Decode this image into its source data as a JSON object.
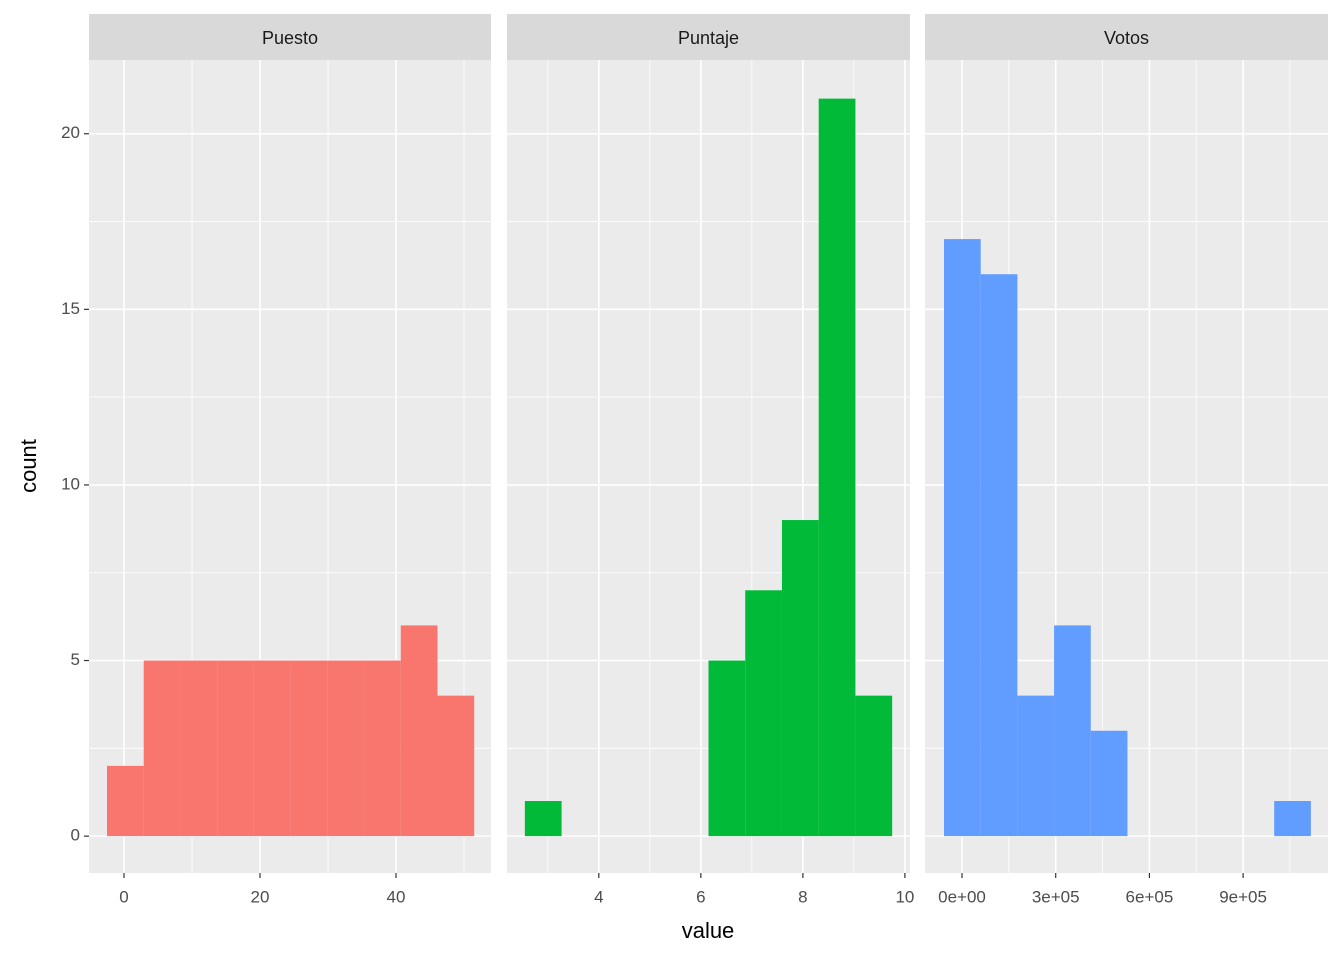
{
  "chart_data": {
    "type": "histogram",
    "xlabel": "value",
    "ylabel": "count",
    "ylim": [
      -1.05,
      22.1
    ],
    "yticks": [
      0,
      5,
      10,
      15,
      20
    ],
    "grid": true,
    "facets": [
      {
        "title": "Puesto",
        "color": "#F8766D",
        "bins": [
          -2.5,
          2.9,
          8.3,
          13.7,
          19.1,
          24.5,
          29.9,
          35.3,
          40.7,
          46.1,
          51.5
        ],
        "counts": [
          2,
          5,
          5,
          5,
          5,
          5,
          5,
          5,
          6,
          4
        ],
        "xlim": [
          -5.15,
          53.97
        ],
        "xticks": [
          0,
          20,
          40
        ]
      },
      {
        "title": "Puntaje",
        "color": "#00BA38",
        "bins": [
          2.55,
          3.27,
          3.99,
          4.71,
          5.43,
          6.15,
          6.87,
          7.59,
          8.31,
          9.03,
          9.75
        ],
        "counts": [
          1,
          0,
          0,
          0,
          0,
          5,
          7,
          9,
          21,
          4
        ],
        "xlim": [
          2.2,
          10.1
        ],
        "xticks": [
          4,
          6,
          8,
          10
        ]
      },
      {
        "title": "Votos",
        "color": "#619CFF",
        "bins": [
          -57600,
          59860,
          177320,
          294780,
          412240,
          529700,
          647160,
          764620,
          882080,
          999540,
          1117000
        ],
        "counts": [
          17,
          16,
          4,
          6,
          3,
          0,
          0,
          0,
          0,
          1
        ],
        "xlim": [
          -118500,
          1171800
        ],
        "xticks": [
          {
            "value": 0,
            "label": "0e+00"
          },
          {
            "value": 300000,
            "label": "3e+05"
          },
          {
            "value": 600000,
            "label": "6e+05"
          },
          {
            "value": 900000,
            "label": "9e+05"
          }
        ]
      }
    ]
  }
}
